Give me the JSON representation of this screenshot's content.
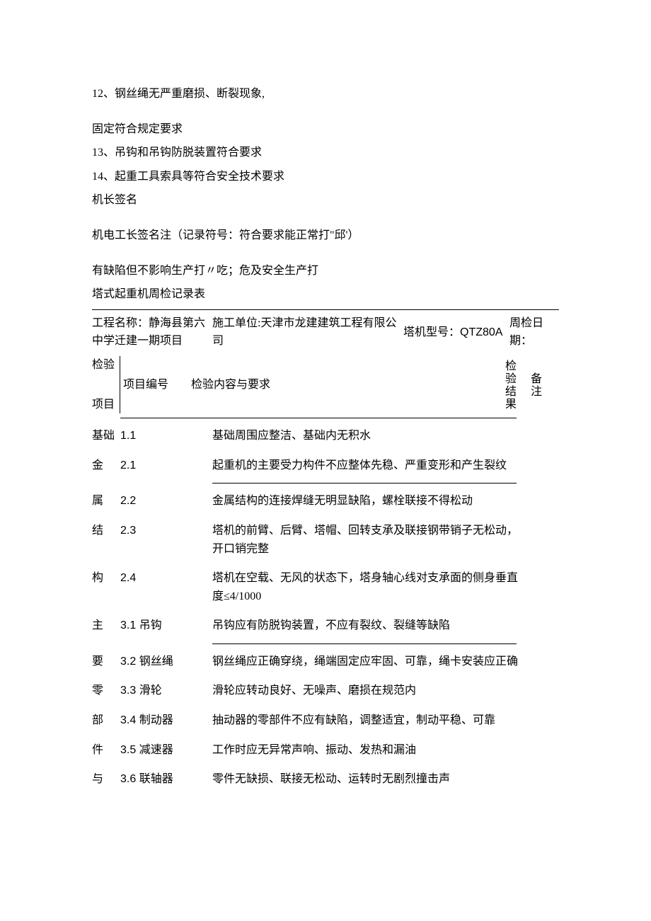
{
  "intro": {
    "line1": "12、钢丝绳无严重磨损、断裂现象,",
    "line2": "固定符合规定要求",
    "line3": "13、吊钩和吊钩防脱装置符合要求",
    "line4": "14、起重工具索具等符合安全技术要求",
    "line5": "机长签名",
    "line6": "机电工长签名注（记录符号：符合要求能正常打\"邱'）",
    "line7": "有缺陷但不影响生产打〃吃；危及安全生产打",
    "line8": "塔式起重机周检记录表"
  },
  "header": {
    "project_label": "工程名称：",
    "project_value": "静海县第六中学迁建一期项目",
    "unit_label": "施工单位:",
    "unit_value": "天津市龙建建筑工程有限公司",
    "model_label": "塔机型号：",
    "model_value": "QTZ80A",
    "date_label": "周检日期："
  },
  "thead": {
    "c1a": "检验",
    "c1b": "项目",
    "c2": "项目编号",
    "c3": "检验内容与要求",
    "c4": "检验结果",
    "c5": "备注"
  },
  "rows": [
    {
      "cat": "基础",
      "num": "1.1",
      "content": "基础周围应整洁、基础内无积水",
      "hr_after": false
    },
    {
      "cat": "金",
      "num": "2.1",
      "content": "起重机的主要受力构件不应整体先稳、严重变形和产生裂纹",
      "hr_after": true
    },
    {
      "cat": "属",
      "num": "2.2",
      "content": "金属结构的连接焊缝无明显缺陷，螺栓联接不得松动",
      "hr_after": false
    },
    {
      "cat": "结",
      "num": "2.3",
      "content": "塔机的前臂、后臂、塔帽、回转支承及联接钢带销子无松动，开口销完整",
      "hr_after": false
    },
    {
      "cat": "构",
      "num": "2.4",
      "content": "塔机在空载、无风的状态下，塔身轴心线对支承面的侧身垂直度≤4/1000",
      "hr_after": false
    },
    {
      "cat": "主",
      "num": "3.1 吊钩",
      "content": "吊钩应有防脱钩装置，不应有裂纹、裂缝等缺陷",
      "hr_after": true
    },
    {
      "cat": "要",
      "num": "3.2 钢丝绳",
      "content": "钢丝绳应正确穿绕，绳端固定应牢固、可靠，绳卡安装应正确",
      "hr_after": false
    },
    {
      "cat": "零",
      "num": "3.3 滑轮",
      "content": "滑轮应转动良好、无噪声、磨损在规范内",
      "hr_after": false
    },
    {
      "cat": "部",
      "num": "3.4 制动器",
      "content": "抽动器的零部件不应有缺陷，调整适宜，制动平稳、可靠",
      "hr_after": false
    },
    {
      "cat": "件",
      "num": "3.5 减速器",
      "content": "工作时应无异常声响、振动、发热和漏油",
      "hr_after": false
    },
    {
      "cat": "与",
      "num": "3.6 联轴器",
      "content": "零件无缺损、联接无松动、运转时无剧烈撞击声",
      "hr_after": false
    }
  ]
}
